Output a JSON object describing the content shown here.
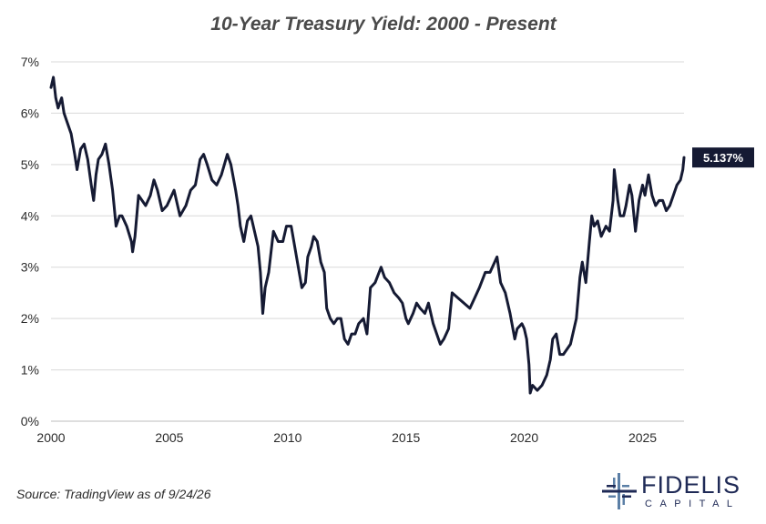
{
  "colors": {
    "line": "#151a33",
    "label_bg": "#151a33",
    "logo_navy": "#1f2a56",
    "logo_blue": "#5b7fa6"
  },
  "source": "Source: TradingView as of 9/24/26",
  "logo": {
    "name": "FIDELIS",
    "sub": "CAPITAL"
  },
  "chart_data": {
    "type": "line",
    "title": "10-Year Treasury Yield: 2000 - Present",
    "xlabel": "",
    "ylabel": "",
    "xlim": [
      2000,
      2026.75
    ],
    "ylim": [
      0,
      7
    ],
    "x_ticks": [
      2000,
      2005,
      2010,
      2015,
      2020,
      2025
    ],
    "y_ticks": [
      0,
      1,
      2,
      3,
      4,
      5,
      6,
      7
    ],
    "y_tick_labels": [
      "0%",
      "1%",
      "2%",
      "3%",
      "4%",
      "5%",
      "6%",
      "7%"
    ],
    "grid": true,
    "end_label": "5.137%",
    "series": [
      {
        "x": [
          2000.0,
          2000.1,
          2000.2,
          2000.3,
          2000.45,
          2000.55,
          2000.7,
          2000.85,
          2001.0,
          2001.1,
          2001.25,
          2001.4,
          2001.55,
          2001.7,
          2001.8,
          2001.9,
          2002.0,
          2002.15,
          2002.3,
          2002.45,
          2002.6,
          2002.75,
          2002.9,
          2003.0,
          2003.2,
          2003.4,
          2003.45,
          2003.55,
          2003.7,
          2003.85,
          2004.0,
          2004.2,
          2004.35,
          2004.5,
          2004.7,
          2004.9,
          2005.0,
          2005.2,
          2005.45,
          2005.7,
          2005.9,
          2006.1,
          2006.3,
          2006.45,
          2006.6,
          2006.8,
          2007.0,
          2007.2,
          2007.45,
          2007.6,
          2007.8,
          2007.9,
          2008.0,
          2008.15,
          2008.3,
          2008.45,
          2008.6,
          2008.75,
          2008.85,
          2008.95,
          2009.05,
          2009.2,
          2009.4,
          2009.6,
          2009.8,
          2009.95,
          2010.15,
          2010.3,
          2010.45,
          2010.6,
          2010.75,
          2010.85,
          2011.0,
          2011.1,
          2011.25,
          2011.4,
          2011.55,
          2011.65,
          2011.8,
          2011.95,
          2012.1,
          2012.25,
          2012.4,
          2012.55,
          2012.7,
          2012.85,
          2013.0,
          2013.2,
          2013.35,
          2013.5,
          2013.7,
          2013.95,
          2014.1,
          2014.3,
          2014.5,
          2014.7,
          2014.85,
          2015.0,
          2015.1,
          2015.3,
          2015.45,
          2015.6,
          2015.8,
          2015.95,
          2016.15,
          2016.3,
          2016.45,
          2016.6,
          2016.8,
          2016.95,
          2017.2,
          2017.45,
          2017.7,
          2017.9,
          2018.1,
          2018.35,
          2018.55,
          2018.75,
          2018.85,
          2019.0,
          2019.2,
          2019.4,
          2019.6,
          2019.7,
          2019.9,
          2020.0,
          2020.1,
          2020.2,
          2020.25,
          2020.35,
          2020.55,
          2020.75,
          2020.95,
          2021.1,
          2021.2,
          2021.35,
          2021.5,
          2021.65,
          2021.8,
          2021.95,
          2022.1,
          2022.2,
          2022.35,
          2022.45,
          2022.6,
          2022.75,
          2022.85,
          2022.95,
          2023.1,
          2023.25,
          2023.45,
          2023.6,
          2023.75,
          2023.8,
          2023.95,
          2024.05,
          2024.2,
          2024.3,
          2024.45,
          2024.55,
          2024.7,
          2024.85,
          2025.0,
          2025.1,
          2025.25,
          2025.4,
          2025.55,
          2025.7,
          2025.85,
          2026.0,
          2026.15,
          2026.3,
          2026.45,
          2026.6,
          2026.7,
          2026.75
        ],
        "y": [
          6.5,
          6.7,
          6.3,
          6.1,
          6.3,
          6.0,
          5.8,
          5.6,
          5.2,
          4.9,
          5.3,
          5.4,
          5.1,
          4.6,
          4.3,
          4.8,
          5.1,
          5.2,
          5.4,
          5.0,
          4.5,
          3.8,
          4.0,
          4.0,
          3.8,
          3.5,
          3.3,
          3.6,
          4.4,
          4.3,
          4.2,
          4.4,
          4.7,
          4.5,
          4.1,
          4.2,
          4.3,
          4.5,
          4.0,
          4.2,
          4.5,
          4.6,
          5.1,
          5.2,
          5.0,
          4.7,
          4.6,
          4.8,
          5.2,
          5.0,
          4.5,
          4.2,
          3.8,
          3.5,
          3.9,
          4.0,
          3.7,
          3.4,
          2.9,
          2.1,
          2.6,
          2.9,
          3.7,
          3.5,
          3.5,
          3.8,
          3.8,
          3.4,
          3.0,
          2.6,
          2.7,
          3.2,
          3.4,
          3.6,
          3.5,
          3.1,
          2.9,
          2.2,
          2.0,
          1.9,
          2.0,
          2.0,
          1.6,
          1.5,
          1.7,
          1.7,
          1.9,
          2.0,
          1.7,
          2.6,
          2.7,
          3.0,
          2.8,
          2.7,
          2.5,
          2.4,
          2.3,
          2.0,
          1.9,
          2.1,
          2.3,
          2.2,
          2.1,
          2.3,
          1.9,
          1.7,
          1.5,
          1.6,
          1.8,
          2.5,
          2.4,
          2.3,
          2.2,
          2.4,
          2.6,
          2.9,
          2.9,
          3.1,
          3.2,
          2.7,
          2.5,
          2.1,
          1.6,
          1.8,
          1.9,
          1.8,
          1.6,
          1.1,
          0.55,
          0.7,
          0.6,
          0.7,
          0.9,
          1.2,
          1.6,
          1.7,
          1.3,
          1.3,
          1.4,
          1.5,
          1.8,
          2.0,
          2.8,
          3.1,
          2.7,
          3.5,
          4.0,
          3.8,
          3.9,
          3.6,
          3.8,
          3.7,
          4.3,
          4.9,
          4.3,
          4.0,
          4.0,
          4.2,
          4.6,
          4.4,
          3.7,
          4.3,
          4.6,
          4.4,
          4.8,
          4.4,
          4.2,
          4.3,
          4.3,
          4.1,
          4.2,
          4.4,
          4.6,
          4.7,
          4.9,
          5.137
        ]
      }
    ]
  }
}
